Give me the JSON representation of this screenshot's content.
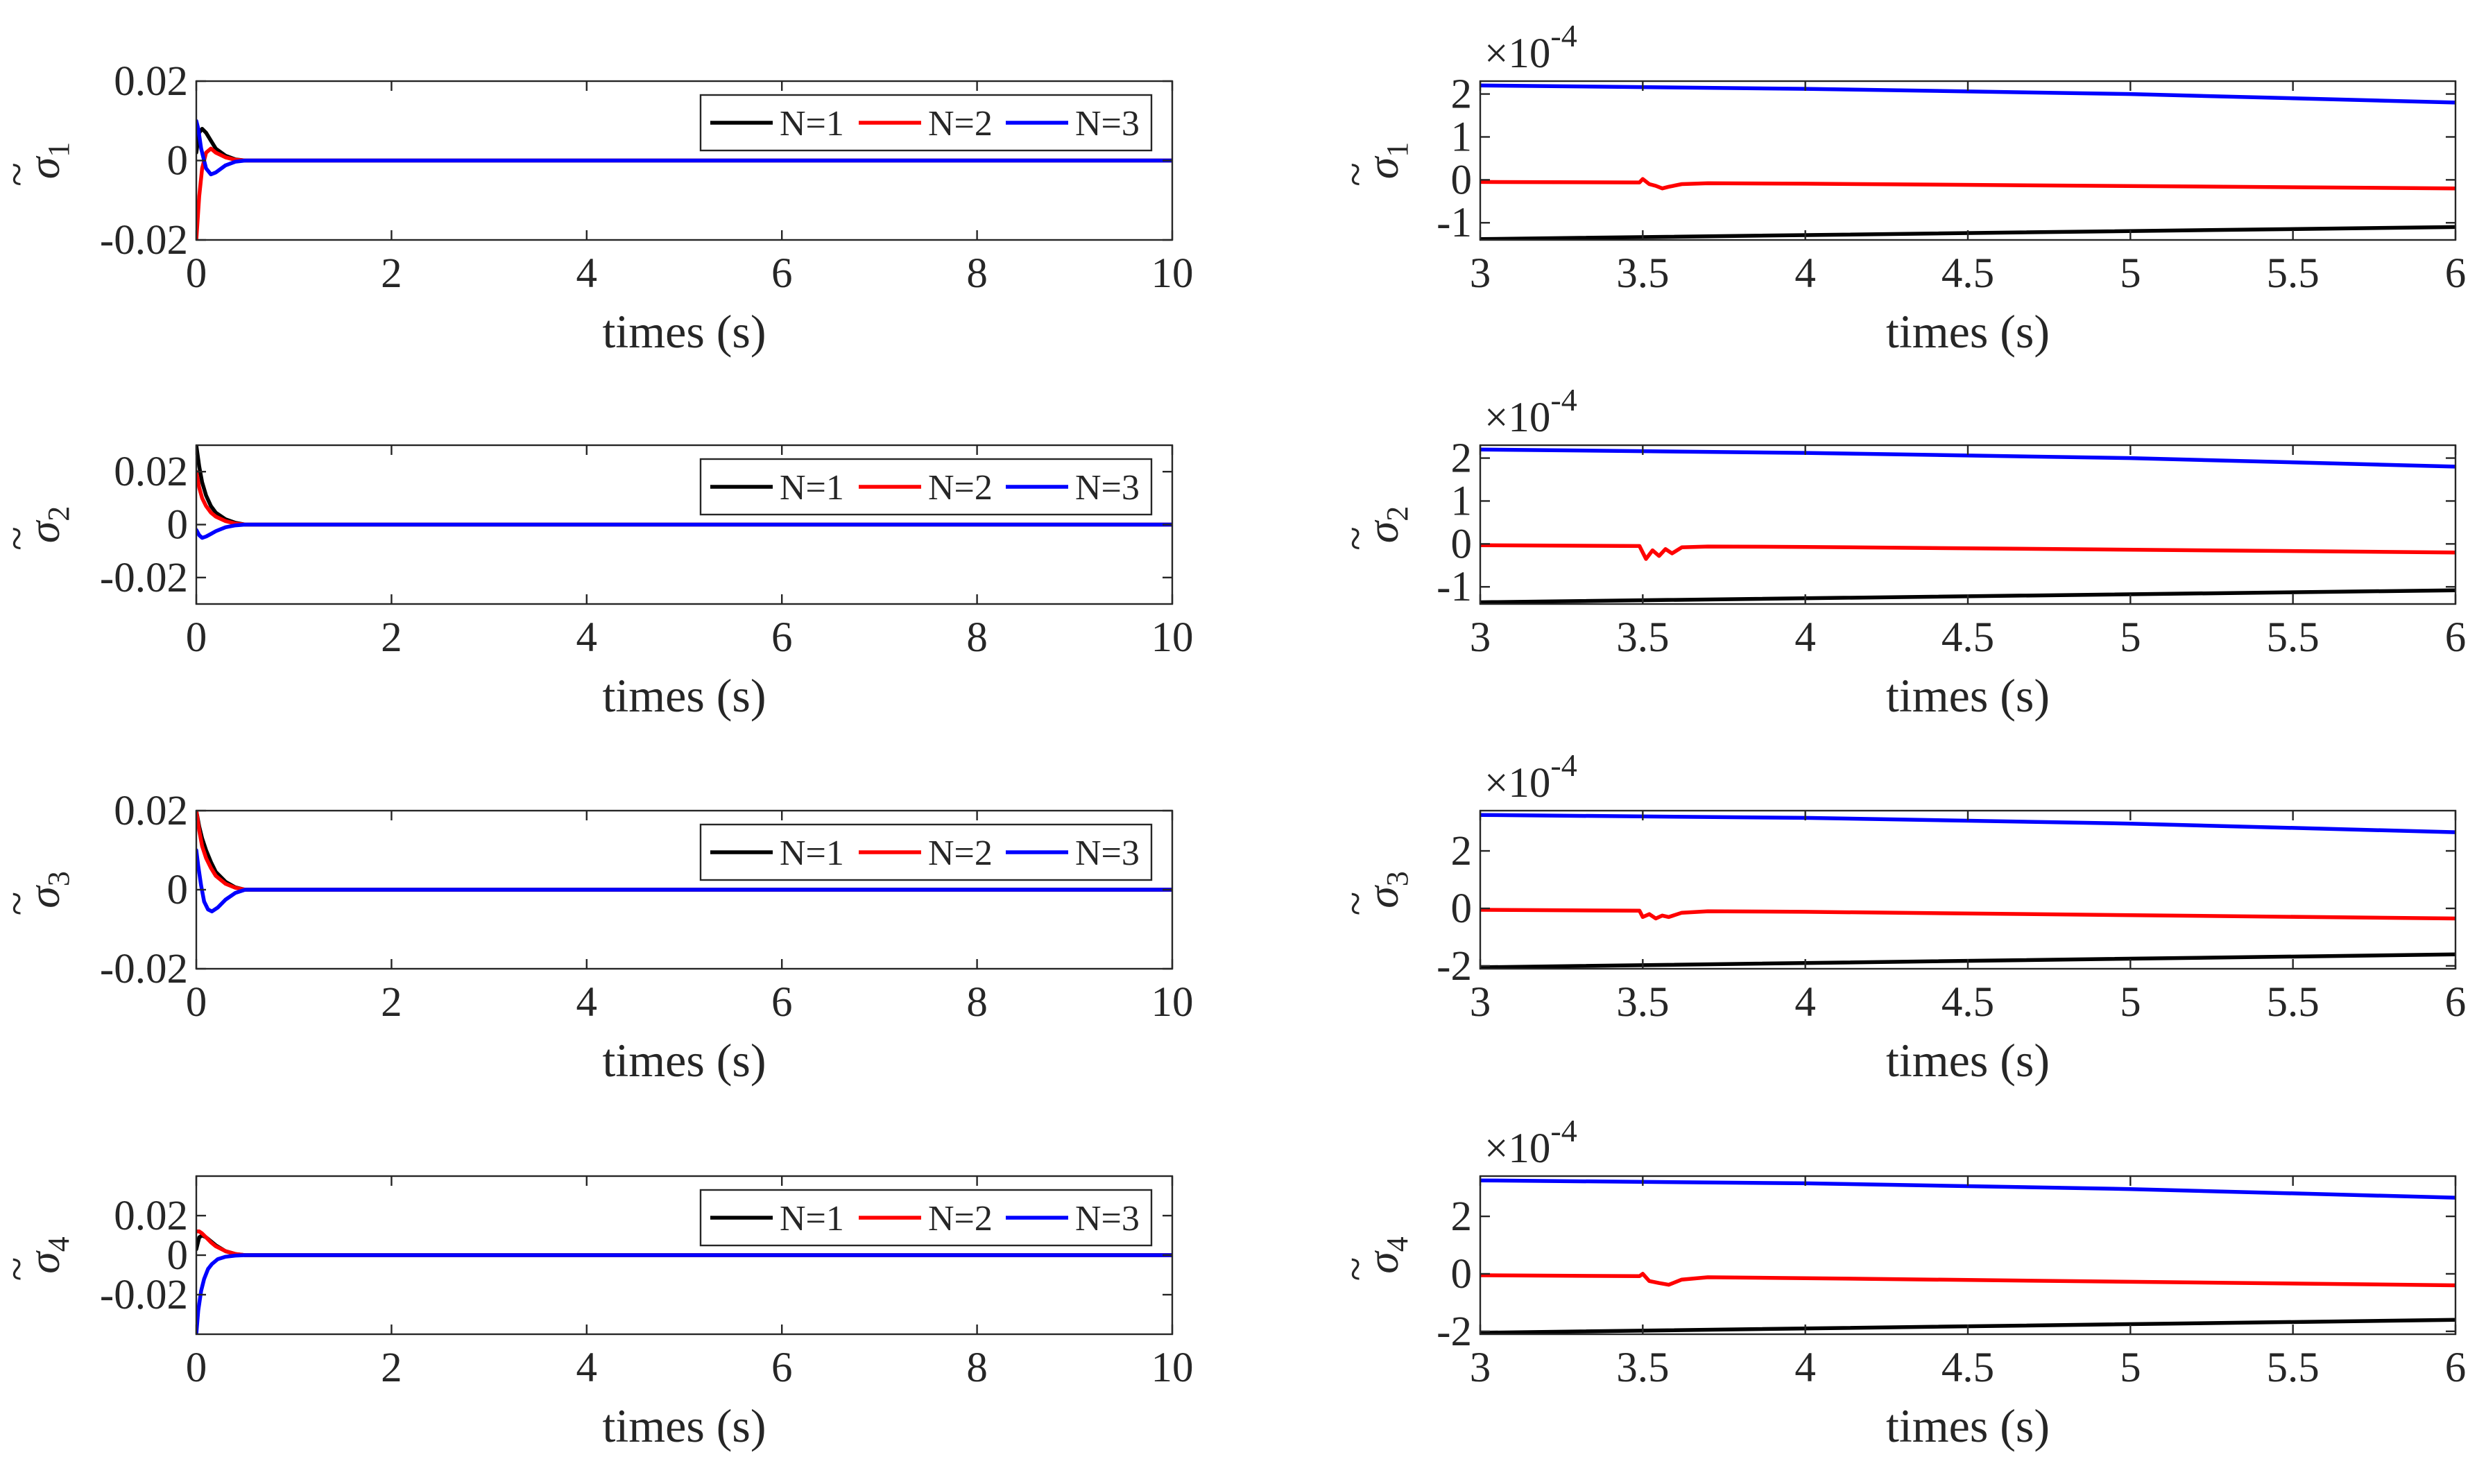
{
  "chart_data": [
    {
      "type": "line",
      "id": "sigma1-full",
      "symbol": "σ",
      "subscript": "1",
      "xlabel": "times (s)",
      "xlim": [
        0,
        10
      ],
      "ylim": [
        -0.02,
        0.02
      ],
      "xticks": [
        0,
        2,
        4,
        6,
        8,
        10
      ],
      "xtick_labels": [
        "0",
        "2",
        "4",
        "6",
        "8",
        "10"
      ],
      "yticks": [
        -0.02,
        0,
        0.02
      ],
      "ytick_labels": [
        "-0.02",
        "0",
        "0.02"
      ],
      "legend": true,
      "series": [
        {
          "name": "N=1",
          "color": "#000000",
          "x": [
            0,
            0.03,
            0.06,
            0.1,
            0.15,
            0.2,
            0.3,
            0.4,
            0.5,
            10
          ],
          "y": [
            0.002,
            0.007,
            0.008,
            0.007,
            0.005,
            0.003,
            0.0012,
            0.0003,
            0,
            0
          ]
        },
        {
          "name": "N=2",
          "color": "#ff0000",
          "x": [
            0,
            0.03,
            0.06,
            0.1,
            0.15,
            0.2,
            0.3,
            0.4,
            0.5,
            10
          ],
          "y": [
            -0.02,
            -0.009,
            -0.002,
            0.002,
            0.003,
            0.002,
            0.0008,
            0.0002,
            0,
            0
          ]
        },
        {
          "name": "N=3",
          "color": "#0000ff",
          "x": [
            0,
            0.02,
            0.05,
            0.1,
            0.15,
            0.2,
            0.3,
            0.4,
            0.5,
            10
          ],
          "y": [
            0.01,
            0.008,
            0.003,
            -0.002,
            -0.0035,
            -0.003,
            -0.0012,
            -0.0003,
            0,
            0
          ]
        }
      ]
    },
    {
      "type": "line",
      "id": "sigma2-full",
      "symbol": "σ",
      "subscript": "2",
      "xlabel": "times (s)",
      "xlim": [
        0,
        10
      ],
      "ylim": [
        -0.03,
        0.03
      ],
      "xticks": [
        0,
        2,
        4,
        6,
        8,
        10
      ],
      "xtick_labels": [
        "0",
        "2",
        "4",
        "6",
        "8",
        "10"
      ],
      "yticks": [
        -0.02,
        0,
        0.02
      ],
      "ytick_labels": [
        "-0.02",
        "0",
        "0.02"
      ],
      "legend": true,
      "series": [
        {
          "name": "N=1",
          "color": "#000000",
          "x": [
            0,
            0.03,
            0.06,
            0.1,
            0.15,
            0.2,
            0.3,
            0.4,
            0.5,
            10
          ],
          "y": [
            0.03,
            0.022,
            0.016,
            0.011,
            0.007,
            0.0045,
            0.002,
            0.0007,
            0,
            0
          ]
        },
        {
          "name": "N=2",
          "color": "#ff0000",
          "x": [
            0,
            0.03,
            0.06,
            0.1,
            0.15,
            0.2,
            0.3,
            0.4,
            0.5,
            10
          ],
          "y": [
            0.02,
            0.014,
            0.01,
            0.007,
            0.0045,
            0.003,
            0.0013,
            0.0004,
            0,
            0
          ]
        },
        {
          "name": "N=3",
          "color": "#0000ff",
          "x": [
            0,
            0.03,
            0.06,
            0.1,
            0.15,
            0.2,
            0.3,
            0.4,
            0.5,
            10
          ],
          "y": [
            -0.002,
            -0.004,
            -0.005,
            -0.0045,
            -0.0035,
            -0.0025,
            -0.001,
            -0.0003,
            0,
            0
          ]
        }
      ]
    },
    {
      "type": "line",
      "id": "sigma3-full",
      "symbol": "σ",
      "subscript": "3",
      "xlabel": "times (s)",
      "xlim": [
        0,
        10
      ],
      "ylim": [
        -0.02,
        0.02
      ],
      "xticks": [
        0,
        2,
        4,
        6,
        8,
        10
      ],
      "xtick_labels": [
        "0",
        "2",
        "4",
        "6",
        "8",
        "10"
      ],
      "yticks": [
        -0.02,
        0,
        0.02
      ],
      "ytick_labels": [
        "-0.02",
        "0",
        "0.02"
      ],
      "legend": true,
      "series": [
        {
          "name": "N=1",
          "color": "#000000",
          "x": [
            0,
            0.03,
            0.06,
            0.1,
            0.15,
            0.2,
            0.3,
            0.4,
            0.5,
            10
          ],
          "y": [
            0.02,
            0.016,
            0.013,
            0.01,
            0.007,
            0.0045,
            0.002,
            0.0006,
            0,
            0
          ]
        },
        {
          "name": "N=2",
          "color": "#ff0000",
          "x": [
            0,
            0.03,
            0.06,
            0.1,
            0.15,
            0.2,
            0.3,
            0.4,
            0.5,
            10
          ],
          "y": [
            0.02,
            0.015,
            0.011,
            0.008,
            0.0055,
            0.0035,
            0.0015,
            0.0005,
            0,
            0
          ]
        },
        {
          "name": "N=3",
          "color": "#0000ff",
          "x": [
            0,
            0.02,
            0.05,
            0.08,
            0.12,
            0.16,
            0.22,
            0.3,
            0.4,
            0.5,
            10
          ],
          "y": [
            0.01,
            0.006,
            0.001,
            -0.003,
            -0.005,
            -0.0055,
            -0.0045,
            -0.0025,
            -0.0008,
            0,
            0
          ]
        }
      ]
    },
    {
      "type": "line",
      "id": "sigma4-full",
      "symbol": "σ",
      "subscript": "4",
      "xlabel": "times (s)",
      "xlim": [
        0,
        10
      ],
      "ylim": [
        -0.04,
        0.04
      ],
      "xticks": [
        0,
        2,
        4,
        6,
        8,
        10
      ],
      "xtick_labels": [
        "0",
        "2",
        "4",
        "6",
        "8",
        "10"
      ],
      "yticks": [
        -0.02,
        0,
        0.02
      ],
      "ytick_labels": [
        "-0.02",
        "0",
        "0.02"
      ],
      "legend": true,
      "series": [
        {
          "name": "N=1",
          "color": "#000000",
          "x": [
            0,
            0.03,
            0.06,
            0.1,
            0.15,
            0.2,
            0.3,
            0.4,
            0.5,
            10
          ],
          "y": [
            0.003,
            0.009,
            0.01,
            0.009,
            0.007,
            0.005,
            0.002,
            0.0006,
            0,
            0
          ]
        },
        {
          "name": "N=2",
          "color": "#ff0000",
          "x": [
            0,
            0.03,
            0.06,
            0.1,
            0.15,
            0.2,
            0.3,
            0.4,
            0.5,
            10
          ],
          "y": [
            0.012,
            0.012,
            0.011,
            0.009,
            0.0065,
            0.0045,
            0.002,
            0.0006,
            0,
            0
          ]
        },
        {
          "name": "N=3",
          "color": "#0000ff",
          "x": [
            0,
            0.02,
            0.05,
            0.08,
            0.12,
            0.16,
            0.22,
            0.3,
            0.4,
            0.5,
            10
          ],
          "y": [
            -0.04,
            -0.028,
            -0.018,
            -0.012,
            -0.007,
            -0.0045,
            -0.002,
            -0.0008,
            -0.0002,
            0,
            0
          ]
        }
      ]
    },
    {
      "type": "line",
      "id": "sigma1-zoom",
      "symbol": "σ",
      "subscript": "1",
      "xlabel": "times (s)",
      "exponent_base": "×10",
      "exponent_power": "-4",
      "xlim": [
        3,
        6
      ],
      "ylim": [
        -1.4,
        2.3
      ],
      "xticks": [
        3,
        3.5,
        4,
        4.5,
        5,
        5.5,
        6
      ],
      "xtick_labels": [
        "3",
        "3.5",
        "4",
        "4.5",
        "5",
        "5.5",
        "6"
      ],
      "yticks": [
        -1,
        0,
        1,
        2
      ],
      "ytick_labels": [
        "-1",
        "0",
        "1",
        "2"
      ],
      "legend": false,
      "series": [
        {
          "name": "N=1",
          "color": "#000000",
          "x": [
            3,
            6
          ],
          "y": [
            -1.38,
            -1.1
          ]
        },
        {
          "name": "N=2",
          "color": "#ff0000",
          "x": [
            3,
            3.49,
            3.5,
            3.52,
            3.54,
            3.56,
            3.58,
            3.62,
            3.7,
            4,
            6
          ],
          "y": [
            -0.05,
            -0.06,
            0.02,
            -0.1,
            -0.14,
            -0.2,
            -0.16,
            -0.1,
            -0.08,
            -0.09,
            -0.2
          ]
        },
        {
          "name": "N=3",
          "color": "#0000ff",
          "x": [
            3,
            4,
            5,
            6
          ],
          "y": [
            2.2,
            2.12,
            2.0,
            1.8
          ]
        }
      ]
    },
    {
      "type": "line",
      "id": "sigma2-zoom",
      "symbol": "σ",
      "subscript": "2",
      "xlabel": "times (s)",
      "exponent_base": "×10",
      "exponent_power": "-4",
      "xlim": [
        3,
        6
      ],
      "ylim": [
        -1.4,
        2.3
      ],
      "xticks": [
        3,
        3.5,
        4,
        4.5,
        5,
        5.5,
        6
      ],
      "xtick_labels": [
        "3",
        "3.5",
        "4",
        "4.5",
        "5",
        "5.5",
        "6"
      ],
      "yticks": [
        -1,
        0,
        1,
        2
      ],
      "ytick_labels": [
        "-1",
        "0",
        "1",
        "2"
      ],
      "legend": false,
      "series": [
        {
          "name": "N=1",
          "color": "#000000",
          "x": [
            3,
            6
          ],
          "y": [
            -1.36,
            -1.08
          ]
        },
        {
          "name": "N=2",
          "color": "#ff0000",
          "x": [
            3,
            3.49,
            3.5,
            3.51,
            3.53,
            3.55,
            3.57,
            3.59,
            3.62,
            3.7,
            4,
            6
          ],
          "y": [
            -0.03,
            -0.05,
            -0.2,
            -0.35,
            -0.15,
            -0.28,
            -0.12,
            -0.22,
            -0.08,
            -0.06,
            -0.07,
            -0.2
          ]
        },
        {
          "name": "N=3",
          "color": "#0000ff",
          "x": [
            3,
            4,
            5,
            6
          ],
          "y": [
            2.2,
            2.12,
            2.0,
            1.8
          ]
        }
      ]
    },
    {
      "type": "line",
      "id": "sigma3-zoom",
      "symbol": "σ",
      "subscript": "3",
      "xlabel": "times (s)",
      "exponent_base": "×10",
      "exponent_power": "-4",
      "xlim": [
        3,
        6
      ],
      "ylim": [
        -2.1,
        3.4
      ],
      "xticks": [
        3,
        3.5,
        4,
        4.5,
        5,
        5.5,
        6
      ],
      "xtick_labels": [
        "3",
        "3.5",
        "4",
        "4.5",
        "5",
        "5.5",
        "6"
      ],
      "yticks": [
        -2,
        0,
        2
      ],
      "ytick_labels": [
        "-2",
        "0",
        "2"
      ],
      "legend": false,
      "series": [
        {
          "name": "N=1",
          "color": "#000000",
          "x": [
            3,
            6
          ],
          "y": [
            -2.05,
            -1.6
          ]
        },
        {
          "name": "N=2",
          "color": "#ff0000",
          "x": [
            3,
            3.49,
            3.5,
            3.52,
            3.54,
            3.56,
            3.58,
            3.62,
            3.7,
            4,
            6
          ],
          "y": [
            -0.05,
            -0.08,
            -0.3,
            -0.2,
            -0.35,
            -0.25,
            -0.3,
            -0.15,
            -0.1,
            -0.12,
            -0.35
          ]
        },
        {
          "name": "N=3",
          "color": "#0000ff",
          "x": [
            3,
            4,
            5,
            6
          ],
          "y": [
            3.25,
            3.15,
            2.95,
            2.65
          ]
        }
      ]
    },
    {
      "type": "line",
      "id": "sigma4-zoom",
      "symbol": "σ",
      "subscript": "4",
      "xlabel": "times (s)",
      "exponent_base": "×10",
      "exponent_power": "-4",
      "xlim": [
        3,
        6
      ],
      "ylim": [
        -2.1,
        3.4
      ],
      "xticks": [
        3,
        3.5,
        4,
        4.5,
        5,
        5.5,
        6
      ],
      "xtick_labels": [
        "3",
        "3.5",
        "4",
        "4.5",
        "5",
        "5.5",
        "6"
      ],
      "yticks": [
        -2,
        0,
        2
      ],
      "ytick_labels": [
        "-2",
        "0",
        "2"
      ],
      "legend": false,
      "series": [
        {
          "name": "N=1",
          "color": "#000000",
          "x": [
            3,
            6
          ],
          "y": [
            -2.05,
            -1.6
          ]
        },
        {
          "name": "N=2",
          "color": "#ff0000",
          "x": [
            3,
            3.49,
            3.5,
            3.52,
            3.55,
            3.58,
            3.62,
            3.7,
            4,
            6
          ],
          "y": [
            -0.05,
            -0.08,
            0.0,
            -0.25,
            -0.32,
            -0.38,
            -0.2,
            -0.12,
            -0.15,
            -0.4
          ]
        },
        {
          "name": "N=3",
          "color": "#0000ff",
          "x": [
            3,
            4,
            5,
            6
          ],
          "y": [
            3.25,
            3.15,
            2.95,
            2.65
          ]
        }
      ]
    }
  ]
}
